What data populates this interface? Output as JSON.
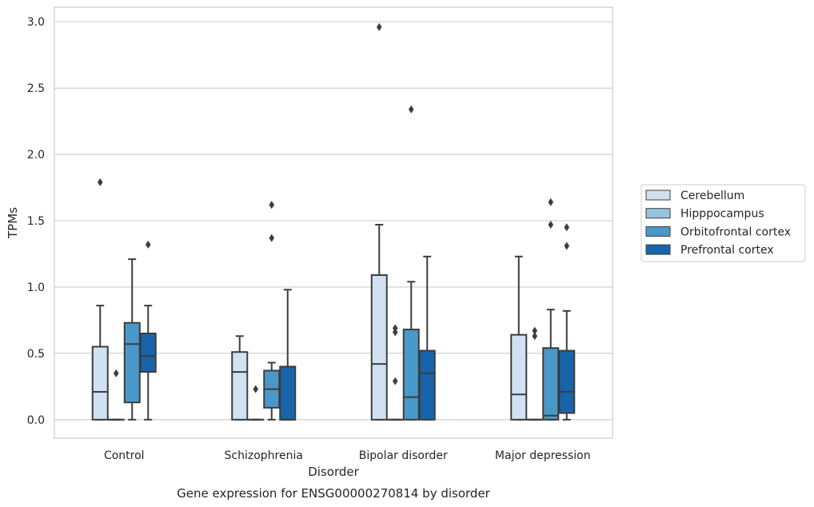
{
  "chart_data": {
    "type": "box",
    "title": "Gene expression for ENSG00000270814 by disorder",
    "xlabel": "Disorder",
    "ylabel": "TPMs",
    "ylim": [
      -0.14,
      3.11
    ],
    "yticks": [
      "0.0",
      "0.5",
      "1.0",
      "1.5",
      "2.0",
      "2.5",
      "3.0"
    ],
    "grid": true,
    "legend_position": "right",
    "categories": [
      "Control",
      "Schizophrenia",
      "Bipolar disorder",
      "Major depression"
    ],
    "series": [
      {
        "name": "Cerebellum",
        "color": "#d0e1f2",
        "boxes": [
          {
            "min": 0.0,
            "q1": 0.0,
            "median": 0.21,
            "q3": 0.55,
            "max": 0.86,
            "outliers": [
              1.79
            ]
          },
          {
            "min": 0.0,
            "q1": 0.0,
            "median": 0.36,
            "q3": 0.51,
            "max": 0.63,
            "outliers": []
          },
          {
            "min": 0.0,
            "q1": 0.0,
            "median": 0.42,
            "q3": 1.09,
            "max": 1.47,
            "outliers": [
              2.96
            ]
          },
          {
            "min": 0.0,
            "q1": 0.0,
            "median": 0.19,
            "q3": 0.64,
            "max": 1.23,
            "outliers": []
          }
        ]
      },
      {
        "name": "Hipppocampus",
        "color": "#94c4df",
        "boxes": [
          {
            "min": 0.0,
            "q1": 0.0,
            "median": 0.0,
            "q3": 0.0,
            "max": 0.0,
            "outliers": [
              0.35
            ]
          },
          {
            "min": 0.0,
            "q1": 0.0,
            "median": 0.0,
            "q3": 0.0,
            "max": 0.0,
            "outliers": [
              0.23
            ]
          },
          {
            "min": 0.0,
            "q1": 0.0,
            "median": 0.0,
            "q3": 0.0,
            "max": 0.0,
            "outliers": [
              0.29,
              0.66,
              0.69
            ]
          },
          {
            "min": 0.0,
            "q1": 0.0,
            "median": 0.0,
            "q3": 0.0,
            "max": 0.0,
            "outliers": [
              0.63,
              0.67
            ]
          }
        ]
      },
      {
        "name": "Orbitofrontal cortex",
        "color": "#4a98c9",
        "boxes": [
          {
            "min": 0.0,
            "q1": 0.13,
            "median": 0.57,
            "q3": 0.73,
            "max": 1.21,
            "outliers": []
          },
          {
            "min": 0.0,
            "q1": 0.09,
            "median": 0.23,
            "q3": 0.37,
            "max": 0.43,
            "outliers": [
              1.37,
              1.62
            ]
          },
          {
            "min": 0.0,
            "q1": 0.0,
            "median": 0.17,
            "q3": 0.68,
            "max": 1.04,
            "outliers": [
              2.34
            ]
          },
          {
            "min": 0.0,
            "q1": 0.0,
            "median": 0.03,
            "q3": 0.54,
            "max": 0.83,
            "outliers": [
              1.47,
              1.64
            ]
          }
        ]
      },
      {
        "name": "Prefrontal cortex",
        "color": "#1764ab",
        "boxes": [
          {
            "min": 0.0,
            "q1": 0.36,
            "median": 0.48,
            "q3": 0.65,
            "max": 0.86,
            "outliers": [
              1.32
            ]
          },
          {
            "min": 0.0,
            "q1": 0.0,
            "median": 0.0,
            "q3": 0.4,
            "max": 0.98,
            "outliers": []
          },
          {
            "min": 0.0,
            "q1": 0.0,
            "median": 0.35,
            "q3": 0.52,
            "max": 1.23,
            "outliers": []
          },
          {
            "min": 0.0,
            "q1": 0.05,
            "median": 0.21,
            "q3": 0.52,
            "max": 0.82,
            "outliers": [
              1.31,
              1.45
            ]
          }
        ]
      }
    ]
  }
}
